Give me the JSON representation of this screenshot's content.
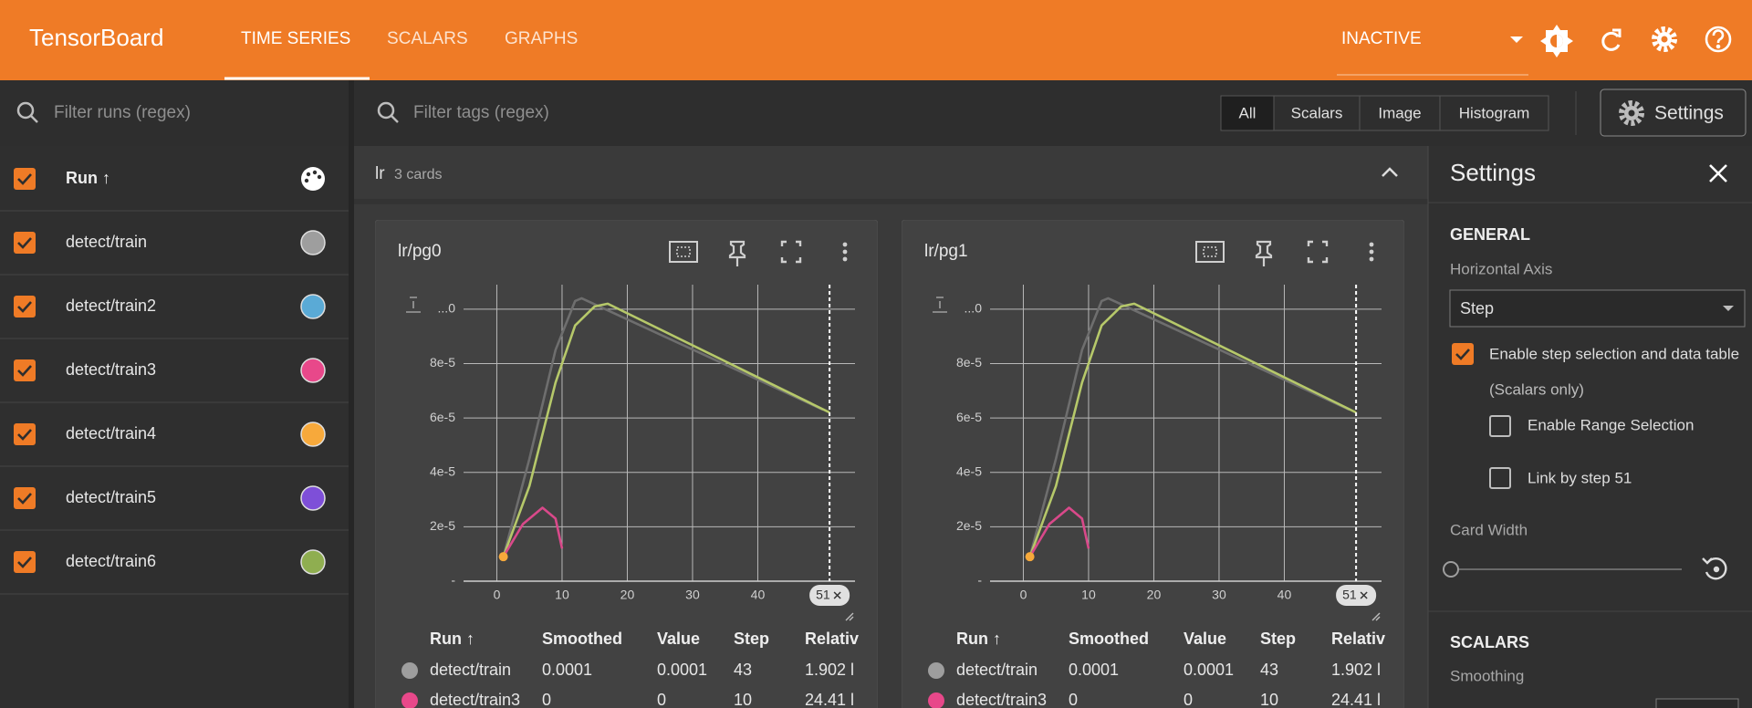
{
  "header": {
    "title": "TensorBoard",
    "tabs": [
      "TIME SERIES",
      "SCALARS",
      "GRAPHS"
    ],
    "status": "INACTIVE"
  },
  "filters": {
    "runs_placeholder": "Filter runs (regex)",
    "tags_placeholder": "Filter tags (regex)",
    "types": [
      "All",
      "Scalars",
      "Image",
      "Histogram"
    ],
    "settings_button": "Settings"
  },
  "runs": {
    "header": "Run ↑",
    "items": [
      {
        "name": "detect/train",
        "color": "#9e9e9e"
      },
      {
        "name": "detect/train2",
        "color": "#5aaad6"
      },
      {
        "name": "detect/train3",
        "color": "#e8488a"
      },
      {
        "name": "detect/train4",
        "color": "#f7a93b"
      },
      {
        "name": "detect/train5",
        "color": "#7e4fd8"
      },
      {
        "name": "detect/train6",
        "color": "#8fae50"
      }
    ]
  },
  "group": {
    "name": "lr",
    "count": "3 cards"
  },
  "cards": [
    {
      "title": "lr/pg0",
      "chart_data": {
        "type": "line",
        "xlim": [
          -5.1,
          54.9
        ],
        "ylim": [
          0,
          0.000109
        ],
        "xticks": [
          0,
          10,
          20,
          30,
          40
        ],
        "yticks": [
          {
            "value": 0,
            "label": "-"
          },
          {
            "value": 2e-05,
            "label": "2e-5"
          },
          {
            "value": 4e-05,
            "label": "4e-5"
          },
          {
            "value": 6e-05,
            "label": "6e-5"
          },
          {
            "value": 8e-05,
            "label": "8e-5"
          },
          {
            "value": 0.0001,
            "label": "...0"
          }
        ],
        "grid": true,
        "step_selection": 51,
        "series": [
          {
            "name": "detect/train",
            "color": "#6e6e6e",
            "x": [
              1,
              5,
              9,
              12,
              13,
              50
            ],
            "values": [
              9e-06,
              4.5e-05,
              8.5e-05,
              0.000103,
              0.000104,
              6.3e-05
            ]
          },
          {
            "name": "detect/train6",
            "color": "#b6c86a",
            "x": [
              1,
              5,
              9,
              12,
              15,
              17,
              51
            ],
            "values": [
              9e-06,
              3.5e-05,
              7.3e-05,
              9.4e-05,
              0.000101,
              0.000102,
              6.2e-05
            ]
          },
          {
            "name": "detect/train3",
            "color": "#d9498a",
            "x": [
              1,
              4,
              7,
              9,
              10
            ],
            "values": [
              9e-06,
              2.1e-05,
              2.7e-05,
              2.3e-05,
              1.2e-05
            ]
          },
          {
            "name": "detect/train4",
            "color": "#f7a93b",
            "x": [
              1
            ],
            "values": [
              9e-06
            ]
          }
        ]
      },
      "table": {
        "columns": [
          "Run ↑",
          "Smoothed",
          "Value",
          "Step",
          "Relativ"
        ],
        "rows": [
          {
            "color": "#9e9e9e",
            "cells": [
              "detect/train",
              0.0001,
              0.0001,
              43,
              "1.902 l"
            ]
          },
          {
            "color": "#e8488a",
            "cells": [
              "detect/train3",
              0,
              0,
              10,
              "24.41 l"
            ]
          }
        ]
      }
    },
    {
      "title": "lr/pg1",
      "chart_data": {
        "type": "line",
        "xlim": [
          -5.1,
          54.9
        ],
        "ylim": [
          0,
          0.000109
        ],
        "xticks": [
          0,
          10,
          20,
          30,
          40
        ],
        "yticks": [
          {
            "value": 0,
            "label": "-"
          },
          {
            "value": 2e-05,
            "label": "2e-5"
          },
          {
            "value": 4e-05,
            "label": "4e-5"
          },
          {
            "value": 6e-05,
            "label": "6e-5"
          },
          {
            "value": 8e-05,
            "label": "8e-5"
          },
          {
            "value": 0.0001,
            "label": "...0"
          }
        ],
        "grid": true,
        "step_selection": 51,
        "series": [
          {
            "name": "detect/train",
            "color": "#6e6e6e",
            "x": [
              1,
              5,
              9,
              12,
              13,
              50
            ],
            "values": [
              9e-06,
              4.5e-05,
              8.5e-05,
              0.000103,
              0.000104,
              6.3e-05
            ]
          },
          {
            "name": "detect/train6",
            "color": "#b6c86a",
            "x": [
              1,
              5,
              9,
              12,
              15,
              17,
              51
            ],
            "values": [
              9e-06,
              3.5e-05,
              7.3e-05,
              9.4e-05,
              0.000101,
              0.000102,
              6.2e-05
            ]
          },
          {
            "name": "detect/train3",
            "color": "#d9498a",
            "x": [
              1,
              4,
              7,
              9,
              10
            ],
            "values": [
              9e-06,
              2.1e-05,
              2.7e-05,
              2.3e-05,
              1.2e-05
            ]
          },
          {
            "name": "detect/train4",
            "color": "#f7a93b",
            "x": [
              1
            ],
            "values": [
              9e-06
            ]
          }
        ]
      },
      "table": {
        "columns": [
          "Run ↑",
          "Smoothed",
          "Value",
          "Step",
          "Relativ"
        ],
        "rows": [
          {
            "color": "#9e9e9e",
            "cells": [
              "detect/train",
              0.0001,
              0.0001,
              43,
              "1.902 l"
            ]
          },
          {
            "color": "#e8488a",
            "cells": [
              "detect/train3",
              0,
              0,
              10,
              "24.41 l"
            ]
          }
        ]
      }
    }
  ],
  "settings": {
    "title": "Settings",
    "general": "GENERAL",
    "horizontal_axis_label": "Horizontal Axis",
    "horizontal_axis_value": "Step",
    "step_selection": "Enable step selection and data table",
    "step_selection_note": "(Scalars only)",
    "range_selection": "Enable Range Selection",
    "link_by_step": "Link by step 51",
    "card_width": "Card Width",
    "scalars": "SCALARS",
    "smoothing": "Smoothing"
  }
}
